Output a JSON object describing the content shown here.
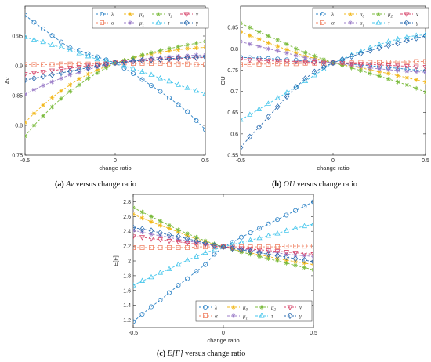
{
  "colors": {
    "lambda": "#2e83c6",
    "alpha": "#f0876a",
    "mu0": "#f2b81b",
    "mu1": "#9d7fc9",
    "mu2": "#7bbb3d",
    "tau": "#46c6ec",
    "nu": "#d7466b",
    "gamma": "#2a6bb0"
  },
  "legend": [
    {
      "key": "lambda",
      "base": "λ",
      "sub": "",
      "marker": "circle"
    },
    {
      "key": "mu0",
      "base": "μ",
      "sub": "0",
      "marker": "star"
    },
    {
      "key": "mu2",
      "base": "μ",
      "sub": "2",
      "marker": "star"
    },
    {
      "key": "nu",
      "base": "ν",
      "sub": "",
      "marker": "tri-down"
    },
    {
      "key": "alpha",
      "base": "α",
      "sub": "",
      "marker": "square"
    },
    {
      "key": "mu1",
      "base": "μ",
      "sub": "1",
      "marker": "star"
    },
    {
      "key": "tau",
      "base": "τ",
      "sub": "",
      "marker": "tri-up"
    },
    {
      "key": "gamma",
      "base": "γ",
      "sub": "",
      "marker": "diamond"
    }
  ],
  "captions": {
    "a": {
      "label": "(a)",
      "metric": "Av",
      "suffix": "versus change ratio"
    },
    "b": {
      "label": "(b)",
      "metric": "OU",
      "suffix": "versus change ratio"
    },
    "c": {
      "label": "(c)",
      "metric": "E[F]",
      "suffix": "versus change ratio"
    }
  },
  "chart_data": [
    {
      "type": "line",
      "xlabel": "change ratio",
      "ylabel": "Av",
      "xlim": [
        -0.5,
        0.5
      ],
      "ylim": [
        0.75,
        1.0
      ],
      "xticks": [
        -0.5,
        0,
        0.5
      ],
      "xtick_labels": [
        "-0.5",
        "0",
        "0.5"
      ],
      "yticks": [
        0.75,
        0.8,
        0.85,
        0.9,
        0.95
      ],
      "ytick_labels": [
        "0.75",
        "0.8",
        "0.85",
        "0.9",
        "0.95"
      ],
      "legend_position": "top",
      "x": [
        -0.5,
        -0.45,
        -0.4,
        -0.35,
        -0.3,
        -0.25,
        -0.2,
        -0.15,
        -0.1,
        -0.05,
        0,
        0.05,
        0.1,
        0.15,
        0.2,
        0.25,
        0.3,
        0.35,
        0.4,
        0.45,
        0.5
      ],
      "series": [
        {
          "key": "lambda",
          "values": [
            0.985,
            0.973,
            0.962,
            0.951,
            0.94,
            0.93,
            0.926,
            0.92,
            0.915,
            0.91,
            0.905,
            0.896,
            0.887,
            0.877,
            0.867,
            0.857,
            0.846,
            0.835,
            0.823,
            0.808,
            0.793
          ]
        },
        {
          "key": "alpha",
          "values": [
            0.902,
            0.902,
            0.902,
            0.902,
            0.903,
            0.903,
            0.903,
            0.903,
            0.903,
            0.904,
            0.905,
            0.905,
            0.904,
            0.904,
            0.904,
            0.904,
            0.903,
            0.903,
            0.903,
            0.902,
            0.902
          ]
        },
        {
          "key": "mu0",
          "values": [
            0.805,
            0.82,
            0.834,
            0.847,
            0.858,
            0.868,
            0.878,
            0.886,
            0.893,
            0.899,
            0.905,
            0.909,
            0.913,
            0.917,
            0.92,
            0.923,
            0.925,
            0.927,
            0.929,
            0.93,
            0.931
          ]
        },
        {
          "key": "mu1",
          "values": [
            0.852,
            0.86,
            0.867,
            0.873,
            0.879,
            0.885,
            0.889,
            0.894,
            0.898,
            0.901,
            0.905,
            0.907,
            0.909,
            0.911,
            0.913,
            0.914,
            0.915,
            0.916,
            0.917,
            0.918,
            0.918
          ]
        },
        {
          "key": "mu2",
          "values": [
            0.782,
            0.8,
            0.816,
            0.831,
            0.845,
            0.857,
            0.868,
            0.879,
            0.888,
            0.897,
            0.905,
            0.909,
            0.914,
            0.918,
            0.922,
            0.926,
            0.929,
            0.932,
            0.935,
            0.938,
            0.941
          ]
        },
        {
          "key": "tau",
          "values": [
            0.948,
            0.944,
            0.94,
            0.935,
            0.931,
            0.926,
            0.921,
            0.916,
            0.911,
            0.908,
            0.905,
            0.9,
            0.895,
            0.89,
            0.885,
            0.879,
            0.874,
            0.868,
            0.863,
            0.858,
            0.853
          ]
        },
        {
          "key": "nu",
          "values": [
            0.886,
            0.888,
            0.89,
            0.892,
            0.894,
            0.896,
            0.898,
            0.9,
            0.901,
            0.903,
            0.905,
            0.906,
            0.907,
            0.908,
            0.909,
            0.91,
            0.911,
            0.912,
            0.913,
            0.913,
            0.914
          ]
        },
        {
          "key": "gamma",
          "values": [
            0.876,
            0.879,
            0.882,
            0.885,
            0.888,
            0.891,
            0.894,
            0.897,
            0.9,
            0.902,
            0.905,
            0.906,
            0.908,
            0.909,
            0.91,
            0.911,
            0.912,
            0.913,
            0.914,
            0.914,
            0.915
          ]
        }
      ]
    },
    {
      "type": "line",
      "xlabel": "change ratio",
      "ylabel": "OU",
      "xlim": [
        -0.5,
        0.5
      ],
      "ylim": [
        0.55,
        0.9
      ],
      "xticks": [
        -0.5,
        0,
        0.5
      ],
      "xtick_labels": [
        "-0.5",
        "0",
        "0.5"
      ],
      "yticks": [
        0.55,
        0.6,
        0.65,
        0.7,
        0.75,
        0.8,
        0.85
      ],
      "ytick_labels": [
        "0.55",
        "0.6",
        "0.65",
        "0.7",
        "0.75",
        "0.8",
        "0.85"
      ],
      "legend_position": "top",
      "x": [
        -0.5,
        -0.45,
        -0.4,
        -0.35,
        -0.3,
        -0.25,
        -0.2,
        -0.15,
        -0.1,
        -0.05,
        0,
        0.05,
        0.1,
        0.15,
        0.2,
        0.25,
        0.3,
        0.35,
        0.4,
        0.45,
        0.5
      ],
      "series": [
        {
          "key": "lambda",
          "values": [
            0.78,
            0.779,
            0.778,
            0.777,
            0.776,
            0.774,
            0.773,
            0.771,
            0.77,
            0.768,
            0.767,
            0.765,
            0.764,
            0.762,
            0.76,
            0.758,
            0.756,
            0.754,
            0.752,
            0.75,
            0.748
          ]
        },
        {
          "key": "alpha",
          "values": [
            0.763,
            0.763,
            0.764,
            0.764,
            0.765,
            0.765,
            0.765,
            0.766,
            0.766,
            0.766,
            0.767,
            0.767,
            0.767,
            0.768,
            0.768,
            0.768,
            0.769,
            0.769,
            0.769,
            0.77,
            0.77
          ]
        },
        {
          "key": "mu0",
          "values": [
            0.84,
            0.831,
            0.823,
            0.814,
            0.806,
            0.798,
            0.79,
            0.782,
            0.778,
            0.772,
            0.767,
            0.763,
            0.759,
            0.755,
            0.751,
            0.746,
            0.742,
            0.737,
            0.732,
            0.727,
            0.722
          ]
        },
        {
          "key": "mu1",
          "values": [
            0.817,
            0.811,
            0.806,
            0.8,
            0.795,
            0.79,
            0.784,
            0.779,
            0.775,
            0.771,
            0.767,
            0.764,
            0.761,
            0.758,
            0.755,
            0.753,
            0.751,
            0.749,
            0.747,
            0.746,
            0.745
          ]
        },
        {
          "key": "mu2",
          "values": [
            0.86,
            0.85,
            0.84,
            0.83,
            0.821,
            0.811,
            0.8,
            0.791,
            0.783,
            0.775,
            0.767,
            0.761,
            0.755,
            0.749,
            0.742,
            0.736,
            0.729,
            0.722,
            0.715,
            0.707,
            0.698
          ]
        },
        {
          "key": "tau",
          "values": [
            0.633,
            0.645,
            0.658,
            0.671,
            0.684,
            0.697,
            0.71,
            0.724,
            0.738,
            0.752,
            0.767,
            0.776,
            0.785,
            0.794,
            0.802,
            0.81,
            0.817,
            0.823,
            0.828,
            0.831,
            0.833
          ]
        },
        {
          "key": "nu",
          "values": [
            0.775,
            0.774,
            0.773,
            0.772,
            0.771,
            0.771,
            0.77,
            0.769,
            0.768,
            0.767,
            0.767,
            0.766,
            0.765,
            0.764,
            0.763,
            0.762,
            0.761,
            0.76,
            0.759,
            0.758,
            0.757
          ]
        },
        {
          "key": "gamma",
          "values": [
            0.568,
            0.593,
            0.616,
            0.64,
            0.664,
            0.688,
            0.71,
            0.73,
            0.746,
            0.757,
            0.767,
            0.775,
            0.782,
            0.789,
            0.796,
            0.802,
            0.808,
            0.813,
            0.819,
            0.825,
            0.83
          ]
        }
      ]
    },
    {
      "type": "line",
      "xlabel": "change ratio",
      "ylabel": "E[F]",
      "xlim": [
        -0.5,
        0.5
      ],
      "ylim": [
        1.1,
        2.9
      ],
      "xticks": [
        -0.5,
        0,
        0.5
      ],
      "xtick_labels": [
        "-0.5",
        "0",
        "0.5"
      ],
      "yticks": [
        1.2,
        1.4,
        1.6,
        1.8,
        2.0,
        2.2,
        2.4,
        2.6,
        2.8
      ],
      "ytick_labels": [
        "1.2",
        "1.4",
        "1.6",
        "1.8",
        "2",
        "2.2",
        "2.4",
        "2.6",
        "2.8"
      ],
      "legend_position": "bottom",
      "x": [
        -0.5,
        -0.45,
        -0.4,
        -0.35,
        -0.3,
        -0.25,
        -0.2,
        -0.15,
        -0.1,
        -0.05,
        0,
        0.05,
        0.1,
        0.15,
        0.2,
        0.25,
        0.3,
        0.35,
        0.4,
        0.45,
        0.5
      ],
      "series": [
        {
          "key": "lambda",
          "values": [
            1.18,
            1.28,
            1.38,
            1.47,
            1.57,
            1.67,
            1.76,
            1.86,
            1.95,
            2.09,
            2.19,
            2.25,
            2.32,
            2.38,
            2.44,
            2.5,
            2.56,
            2.62,
            2.68,
            2.74,
            2.8
          ]
        },
        {
          "key": "alpha",
          "values": [
            2.18,
            2.18,
            2.18,
            2.18,
            2.18,
            2.18,
            2.18,
            2.19,
            2.19,
            2.19,
            2.19,
            2.19,
            2.19,
            2.19,
            2.19,
            2.19,
            2.19,
            2.2,
            2.2,
            2.2,
            2.2
          ]
        },
        {
          "key": "mu0",
          "values": [
            2.63,
            2.58,
            2.53,
            2.48,
            2.44,
            2.39,
            2.34,
            2.3,
            2.26,
            2.22,
            2.19,
            2.16,
            2.13,
            2.11,
            2.08,
            2.06,
            2.03,
            2.01,
            1.99,
            1.97,
            1.95
          ]
        },
        {
          "key": "mu1",
          "values": [
            2.41,
            2.39,
            2.36,
            2.34,
            2.32,
            2.29,
            2.27,
            2.25,
            2.23,
            2.21,
            2.19,
            2.18,
            2.16,
            2.15,
            2.13,
            2.12,
            2.11,
            2.09,
            2.08,
            2.07,
            2.06
          ]
        },
        {
          "key": "mu2",
          "values": [
            2.72,
            2.66,
            2.6,
            2.54,
            2.48,
            2.42,
            2.37,
            2.32,
            2.27,
            2.23,
            2.19,
            2.16,
            2.12,
            2.09,
            2.06,
            2.03,
            2.0,
            1.97,
            1.94,
            1.91,
            1.88
          ]
        },
        {
          "key": "tau",
          "values": [
            1.67,
            1.73,
            1.78,
            1.84,
            1.89,
            1.95,
            2.01,
            2.06,
            2.11,
            2.15,
            2.19,
            2.22,
            2.25,
            2.28,
            2.31,
            2.34,
            2.37,
            2.41,
            2.44,
            2.47,
            2.5
          ]
        },
        {
          "key": "nu",
          "values": [
            2.33,
            2.32,
            2.3,
            2.29,
            2.27,
            2.26,
            2.24,
            2.23,
            2.22,
            2.2,
            2.19,
            2.18,
            2.17,
            2.16,
            2.15,
            2.14,
            2.13,
            2.12,
            2.11,
            2.1,
            2.09
          ]
        },
        {
          "key": "gamma",
          "values": [
            2.45,
            2.43,
            2.41,
            2.38,
            2.35,
            2.33,
            2.3,
            2.27,
            2.24,
            2.21,
            2.19,
            2.17,
            2.15,
            2.13,
            2.11,
            2.09,
            2.07,
            2.05,
            2.03,
            2.01,
            1.99
          ]
        }
      ]
    }
  ]
}
